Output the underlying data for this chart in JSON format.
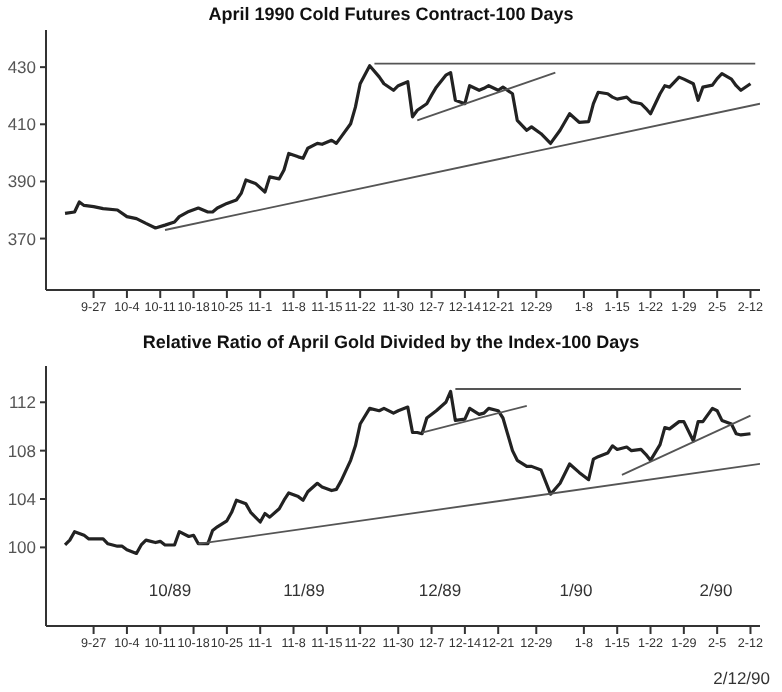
{
  "chart_data": [
    {
      "type": "line",
      "title": "April 1990 Cold Futures Contract-100 Days",
      "xlim": [
        "1989-09-17",
        "1990-02-14"
      ],
      "ylim": [
        352,
        443
      ],
      "yticks": [
        370,
        390,
        410,
        430
      ],
      "xticks": [
        {
          "value": "1989-09-27",
          "label": "9-27"
        },
        {
          "value": "1989-10-04",
          "label": "10-4"
        },
        {
          "value": "1989-10-11",
          "label": "10-11"
        },
        {
          "value": "1989-10-18",
          "label": "10-18"
        },
        {
          "value": "1989-10-25",
          "label": "10-25"
        },
        {
          "value": "1989-11-01",
          "label": "11-1"
        },
        {
          "value": "1989-11-08",
          "label": "11-8"
        },
        {
          "value": "1989-11-15",
          "label": "11-15"
        },
        {
          "value": "1989-11-22",
          "label": "11-22"
        },
        {
          "value": "1989-11-30",
          "label": "11-30"
        },
        {
          "value": "1989-12-07",
          "label": "12-7"
        },
        {
          "value": "1989-12-14",
          "label": "12-14"
        },
        {
          "value": "1989-12-21",
          "label": "12-21"
        },
        {
          "value": "1989-12-29",
          "label": "12-29"
        },
        {
          "value": "1990-01-08",
          "label": "1-8"
        },
        {
          "value": "1990-01-15",
          "label": "1-15"
        },
        {
          "value": "1990-01-22",
          "label": "1-22"
        },
        {
          "value": "1990-01-29",
          "label": "1-29"
        },
        {
          "value": "1990-02-05",
          "label": "2-5"
        },
        {
          "value": "1990-02-12",
          "label": "2-12"
        }
      ],
      "marker": "none",
      "line_style": "solid",
      "series": [
        {
          "color": "#222222",
          "x": [
            "1989-09-21",
            "1989-09-23",
            "1989-09-24",
            "1989-09-25",
            "1989-09-27",
            "1989-09-29",
            "1989-10-02",
            "1989-10-04",
            "1989-10-06",
            "1989-10-08",
            "1989-10-10",
            "1989-10-12",
            "1989-10-14",
            "1989-10-15",
            "1989-10-17",
            "1989-10-19",
            "1989-10-21",
            "1989-10-22",
            "1989-10-23",
            "1989-10-25",
            "1989-10-27",
            "1989-10-28",
            "1989-10-29",
            "1989-10-31",
            "1989-11-02",
            "1989-11-03",
            "1989-11-05",
            "1989-11-06",
            "1989-11-07",
            "1989-11-09",
            "1989-11-10",
            "1989-11-11",
            "1989-11-13",
            "1989-11-14",
            "1989-11-16",
            "1989-11-17",
            "1989-11-18",
            "1989-11-20",
            "1989-11-21",
            "1989-11-22",
            "1989-11-24",
            "1989-11-26",
            "1989-11-27",
            "1989-11-29",
            "1989-11-30",
            "1989-12-02",
            "1989-12-03",
            "1989-12-04",
            "1989-12-06",
            "1989-12-07",
            "1989-12-08",
            "1989-12-10",
            "1989-12-11",
            "1989-12-12",
            "1989-12-14",
            "1989-12-15",
            "1989-12-17",
            "1989-12-18",
            "1989-12-19",
            "1989-12-21",
            "1989-12-22",
            "1989-12-24",
            "1989-12-25",
            "1989-12-27",
            "1989-12-28",
            "1989-12-30",
            "1990-01-01",
            "1990-01-03",
            "1990-01-05",
            "1990-01-07",
            "1990-01-09",
            "1990-01-10",
            "1990-01-11",
            "1990-01-13",
            "1990-01-14",
            "1990-01-15",
            "1990-01-17",
            "1990-01-18",
            "1990-01-20",
            "1990-01-21",
            "1990-01-22",
            "1990-01-24",
            "1990-01-25",
            "1990-01-26",
            "1990-01-28",
            "1990-01-29",
            "1990-01-31",
            "1990-02-01",
            "1990-02-02",
            "1990-02-04",
            "1990-02-05",
            "1990-02-06",
            "1990-02-08",
            "1990-02-09",
            "1990-02-10",
            "1990-02-12"
          ],
          "values": [
            378.8,
            379.3,
            382.8,
            381.6,
            381.2,
            380.5,
            380.0,
            377.7,
            377.0,
            375.3,
            373.7,
            374.7,
            375.8,
            377.7,
            379.5,
            380.7,
            379.3,
            379.3,
            380.7,
            382.3,
            383.5,
            385.8,
            390.5,
            389.3,
            386.3,
            391.6,
            390.9,
            394.0,
            399.8,
            398.6,
            398.1,
            401.6,
            403.3,
            403.0,
            404.4,
            403.3,
            405.6,
            410.2,
            416.0,
            424.2,
            430.5,
            426.6,
            424.2,
            421.9,
            423.5,
            424.9,
            412.6,
            414.9,
            417.2,
            420.2,
            423.0,
            427.2,
            428.1,
            418.4,
            417.2,
            423.5,
            421.9,
            422.6,
            423.5,
            421.9,
            423.0,
            420.7,
            411.4,
            407.9,
            409.1,
            406.7,
            403.3,
            407.9,
            413.7,
            410.7,
            410.9,
            417.2,
            421.2,
            420.7,
            419.5,
            418.8,
            419.5,
            417.9,
            417.2,
            415.6,
            413.7,
            420.7,
            423.5,
            423.0,
            426.5,
            425.8,
            424.2,
            418.4,
            423.0,
            423.7,
            426.0,
            427.7,
            425.8,
            423.5,
            421.9,
            424.2
          ]
        },
        {
          "color": "#555555",
          "x": [
            "1989-10-12",
            "1990-02-14"
          ],
          "values": [
            373.0,
            417.2
          ]
        },
        {
          "color": "#555555",
          "x": [
            "1989-11-25",
            "1990-02-13"
          ],
          "values": [
            431.2,
            431.2
          ]
        },
        {
          "color": "#555555",
          "x": [
            "1989-12-04",
            "1990-01-02"
          ],
          "values": [
            411.4,
            428.1
          ]
        }
      ]
    },
    {
      "type": "line",
      "title": "Relative Ratio of April Gold Divided by the Index-100 Days",
      "xlim": [
        "1989-09-17",
        "1990-02-14"
      ],
      "ylim": [
        93.5,
        115
      ],
      "yticks": [
        100,
        104,
        108,
        112
      ],
      "xticks": [
        {
          "value": "1989-09-27",
          "label": "9-27"
        },
        {
          "value": "1989-10-04",
          "label": "10-4"
        },
        {
          "value": "1989-10-11",
          "label": "10-11"
        },
        {
          "value": "1989-10-18",
          "label": "10-18"
        },
        {
          "value": "1989-10-25",
          "label": "10-25"
        },
        {
          "value": "1989-11-01",
          "label": "11-1"
        },
        {
          "value": "1989-11-08",
          "label": "11-8"
        },
        {
          "value": "1989-11-15",
          "label": "11-15"
        },
        {
          "value": "1989-11-22",
          "label": "11-22"
        },
        {
          "value": "1989-11-30",
          "label": "11-30"
        },
        {
          "value": "1989-12-07",
          "label": "12-7"
        },
        {
          "value": "1989-12-14",
          "label": "12-14"
        },
        {
          "value": "1989-12-21",
          "label": "12-21"
        },
        {
          "value": "1989-12-29",
          "label": "12-29"
        },
        {
          "value": "1990-01-08",
          "label": "1-8"
        },
        {
          "value": "1990-01-15",
          "label": "1-15"
        },
        {
          "value": "1990-01-22",
          "label": "1-22"
        },
        {
          "value": "1990-01-29",
          "label": "1-29"
        },
        {
          "value": "1990-02-05",
          "label": "2-5"
        },
        {
          "value": "1990-02-12",
          "label": "2-12"
        }
      ],
      "marker": "none",
      "line_style": "solid",
      "annotations": [
        "10/89",
        "11/89",
        "12/89",
        "1/90",
        "2/90",
        "2/12/90"
      ],
      "series": [
        {
          "color": "#222222",
          "x": [
            "1989-09-21",
            "1989-09-22",
            "1989-09-23",
            "1989-09-25",
            "1989-09-26",
            "1989-09-27",
            "1989-09-29",
            "1989-09-30",
            "1989-10-02",
            "1989-10-03",
            "1989-10-04",
            "1989-10-06",
            "1989-10-07",
            "1989-10-08",
            "1989-10-10",
            "1989-10-11",
            "1989-10-12",
            "1989-10-14",
            "1989-10-15",
            "1989-10-17",
            "1989-10-18",
            "1989-10-19",
            "1989-10-21",
            "1989-10-22",
            "1989-10-23",
            "1989-10-25",
            "1989-10-26",
            "1989-10-27",
            "1989-10-29",
            "1989-10-30",
            "1989-11-01",
            "1989-11-02",
            "1989-11-03",
            "1989-11-05",
            "1989-11-06",
            "1989-11-07",
            "1989-11-09",
            "1989-11-10",
            "1989-11-11",
            "1989-11-13",
            "1989-11-14",
            "1989-11-16",
            "1989-11-17",
            "1989-11-18",
            "1989-11-20",
            "1989-11-21",
            "1989-11-22",
            "1989-11-24",
            "1989-11-26",
            "1989-11-27",
            "1989-11-29",
            "1989-11-30",
            "1989-12-02",
            "1989-12-03",
            "1989-12-04",
            "1989-12-05",
            "1989-12-06",
            "1989-12-08",
            "1989-12-10",
            "1989-12-11",
            "1989-12-12",
            "1989-12-14",
            "1989-12-15",
            "1989-12-17",
            "1989-12-18",
            "1989-12-19",
            "1989-12-21",
            "1989-12-22",
            "1989-12-24",
            "1989-12-25",
            "1989-12-27",
            "1989-12-28",
            "1989-12-30",
            "1990-01-01",
            "1990-01-03",
            "1990-01-05",
            "1990-01-07",
            "1990-01-09",
            "1990-01-10",
            "1990-01-11",
            "1990-01-13",
            "1990-01-14",
            "1990-01-15",
            "1990-01-17",
            "1990-01-18",
            "1990-01-20",
            "1990-01-21",
            "1990-01-22",
            "1990-01-24",
            "1990-01-25",
            "1990-01-26",
            "1990-01-28",
            "1990-01-29",
            "1990-01-31",
            "1990-02-01",
            "1990-02-02",
            "1990-02-04",
            "1990-02-05",
            "1990-02-06",
            "1990-02-08",
            "1990-02-09",
            "1990-02-10",
            "1990-02-12"
          ],
          "values": [
            100.2,
            100.6,
            101.3,
            101.0,
            100.7,
            100.7,
            100.7,
            100.3,
            100.1,
            100.1,
            99.8,
            99.5,
            100.2,
            100.6,
            100.4,
            100.5,
            100.2,
            100.2,
            101.3,
            100.9,
            101.0,
            100.3,
            100.3,
            101.4,
            101.7,
            102.2,
            102.9,
            103.9,
            103.6,
            102.9,
            102.1,
            102.8,
            102.5,
            103.2,
            103.9,
            104.5,
            104.2,
            103.9,
            104.6,
            105.3,
            105.0,
            104.7,
            104.8,
            105.5,
            107.2,
            108.4,
            110.2,
            111.5,
            111.3,
            111.5,
            111.1,
            111.3,
            111.6,
            109.5,
            109.5,
            109.4,
            110.7,
            111.3,
            112.0,
            112.9,
            110.5,
            110.6,
            111.5,
            111.0,
            111.1,
            111.5,
            111.3,
            110.7,
            108.0,
            107.2,
            106.7,
            106.7,
            106.4,
            104.4,
            105.3,
            106.9,
            106.2,
            105.6,
            107.3,
            107.5,
            107.8,
            108.4,
            108.1,
            108.3,
            108.0,
            108.1,
            107.7,
            107.2,
            108.5,
            109.9,
            109.8,
            110.4,
            110.4,
            108.8,
            110.4,
            110.4,
            111.5,
            111.3,
            110.5,
            110.2,
            109.4,
            109.3,
            109.4
          ]
        },
        {
          "color": "#555555",
          "x": [
            "1989-10-19",
            "1990-02-14"
          ],
          "values": [
            100.3,
            106.9
          ]
        },
        {
          "color": "#555555",
          "x": [
            "1989-12-12",
            "1990-02-10"
          ],
          "values": [
            113.1,
            113.1
          ]
        },
        {
          "color": "#555555",
          "x": [
            "1989-12-05",
            "1989-12-27"
          ],
          "values": [
            109.5,
            111.7
          ]
        },
        {
          "color": "#555555",
          "x": [
            "1990-01-16",
            "1990-02-12"
          ],
          "values": [
            106.0,
            110.9
          ]
        }
      ]
    }
  ]
}
